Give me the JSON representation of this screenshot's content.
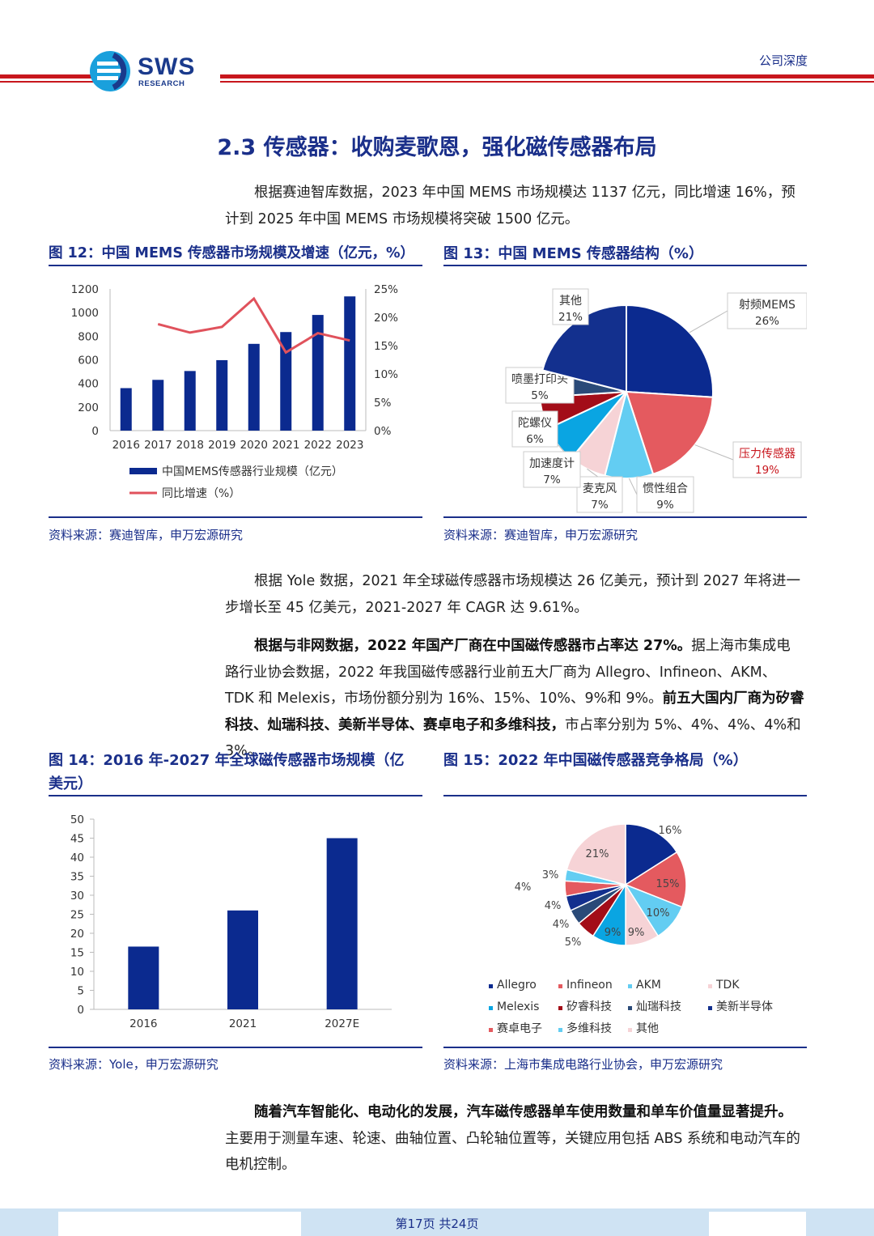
{
  "header": {
    "logo_main": "SWS",
    "logo_sub": "RESEARCH",
    "report_type": "公司深度"
  },
  "section_title": "2.3 传感器：收购麦歌恩，强化磁传感器布局",
  "paragraphs": {
    "p1": "根据赛迪智库数据，2023 年中国 MEMS 市场规模达 1137 亿元，同比增速 16%，预计到 2025 年中国 MEMS 市场规模将突破 1500 亿元。",
    "p2": "根据 Yole 数据，2021 年全球磁传感器市场规模达 26 亿美元，预计到 2027 年将进一步增长至 45 亿美元，2021-2027 年 CAGR 达 9.61%。",
    "p3_bold1": "根据与非网数据，2022 年国产厂商在中国磁传感器市占率达 27%。",
    "p3_normal1": "据上海市集成电路行业协会数据，2022 年我国磁传感器行业前五大厂商为 Allegro、Infineon、AKM、TDK 和 Melexis，市场份额分别为 16%、15%、10%、9%和 9%。",
    "p3_bold2": "前五大国内厂商为矽睿科技、灿瑞科技、美新半导体、赛卓电子和多维科技，",
    "p3_normal2": "市占率分别为 5%、4%、4%、4%和 3%。",
    "p4_bold": "随着汽车智能化、电动化的发展，汽车磁传感器单车使用数量和单车价值量显著提升。",
    "p4_normal": "主要用于测量车速、轮速、曲轴位置、凸轮轴位置等，关键应用包括 ABS 系统和电动汽车的电机控制。"
  },
  "fig12": {
    "title": "图 12：中国 MEMS 传感器市场规模及增速（亿元，%）",
    "source": "资料来源：赛迪智库，申万宏源研究"
  },
  "fig13": {
    "title": "图 13：中国 MEMS 传感器结构（%）",
    "source": "资料来源：赛迪智库，申万宏源研究"
  },
  "fig14": {
    "title_line1": "图 14：2016 年-2027 年全球磁传感器市场规模（亿",
    "title_line2": "美元）",
    "source": "资料来源：Yole，申万宏源研究"
  },
  "fig15": {
    "title": "图 15：2022 年中国磁传感器竞争格局（%）",
    "source": "资料来源：上海市集成电路行业协会，申万宏源研究"
  },
  "footer": {
    "page": "第17页 共24页"
  },
  "chart_data": [
    {
      "type": "bar+line",
      "categories": [
        "2016",
        "2017",
        "2018",
        "2019",
        "2020",
        "2021",
        "2022",
        "2023"
      ],
      "series": [
        {
          "name": "中国MEMS传感器行业规模（亿元）",
          "type": "bar",
          "axis": "left",
          "values": [
            360,
            430,
            505,
            597,
            735,
            835,
            980,
            1137
          ],
          "color": "#0b2a8f"
        },
        {
          "name": "同比增速（%）",
          "type": "line",
          "axis": "right",
          "values": [
            null,
            18.8,
            17.3,
            18.3,
            23.3,
            13.8,
            17.2,
            15.9
          ],
          "color": "#e0525c"
        }
      ],
      "left_axis": {
        "ticks": [
          "0",
          "200",
          "400",
          "600",
          "800",
          "1000",
          "1200"
        ],
        "ylim": [
          0,
          1200
        ]
      },
      "right_axis": {
        "ticks": [
          "0%",
          "5%",
          "10%",
          "15%",
          "20%",
          "25%"
        ],
        "ylim": [
          0,
          25
        ]
      }
    },
    {
      "type": "pie",
      "slices": [
        {
          "label": "射频MEMS",
          "value": 26,
          "pct": "26%",
          "color": "#0b2a8f",
          "label_color": "#333"
        },
        {
          "label": "压力传感器",
          "value": 19,
          "pct": "19%",
          "color": "#e45a5f",
          "label_color": "#c8161d"
        },
        {
          "label": "惯性组合",
          "value": 9,
          "pct": "9%",
          "color": "#63cdf2",
          "label_color": "#333"
        },
        {
          "label": "麦克风",
          "value": 7,
          "pct": "7%",
          "color": "#f6d3d6",
          "label_color": "#333"
        },
        {
          "label": "加速度计",
          "value": 7,
          "pct": "7%",
          "color": "#0aa5e2",
          "label_color": "#333"
        },
        {
          "label": "陀螺仪",
          "value": 6,
          "pct": "6%",
          "color": "#a30d18",
          "label_color": "#333"
        },
        {
          "label": "喷墨打印头",
          "value": 5,
          "pct": "5%",
          "color": "#2a4a78",
          "label_color": "#333"
        },
        {
          "label": "其他",
          "value": 21,
          "pct": "21%",
          "color": "#13308e",
          "label_color": "#333"
        }
      ]
    },
    {
      "type": "bar",
      "categories": [
        "2016",
        "2021",
        "2027E"
      ],
      "values": [
        16.5,
        26,
        45
      ],
      "color": "#0b2a8f",
      "y_ticks": [
        "0",
        "5",
        "10",
        "15",
        "20",
        "25",
        "30",
        "35",
        "40",
        "45",
        "50"
      ],
      "ylim": [
        0,
        50
      ]
    },
    {
      "type": "pie",
      "slices": [
        {
          "label": "Allegro",
          "value": 16,
          "pct": "16%",
          "color": "#0b2a8f"
        },
        {
          "label": "Infineon",
          "value": 15,
          "pct": "15%",
          "color": "#e45a5f"
        },
        {
          "label": "AKM",
          "value": 10,
          "pct": "10%",
          "color": "#63cdf2"
        },
        {
          "label": "TDK",
          "value": 9,
          "pct": "9%",
          "color": "#f6d3d6"
        },
        {
          "label": "Melexis",
          "value": 9,
          "pct": "9%",
          "color": "#0aa5e2"
        },
        {
          "label": "矽睿科技",
          "value": 5,
          "pct": "5%",
          "color": "#a30d18"
        },
        {
          "label": "灿瑞科技",
          "value": 4,
          "pct": "4%",
          "color": "#2a4a78"
        },
        {
          "label": "美新半导体",
          "value": 4,
          "pct": "4%",
          "color": "#13308e"
        },
        {
          "label": "赛卓电子",
          "value": 4,
          "pct": "4%",
          "color": "#e45a5f"
        },
        {
          "label": "多维科技",
          "value": 3,
          "pct": "3%",
          "color": "#63cdf2"
        },
        {
          "label": "其他",
          "value": 21,
          "pct": "21%",
          "color": "#f6d3d6"
        }
      ]
    }
  ]
}
